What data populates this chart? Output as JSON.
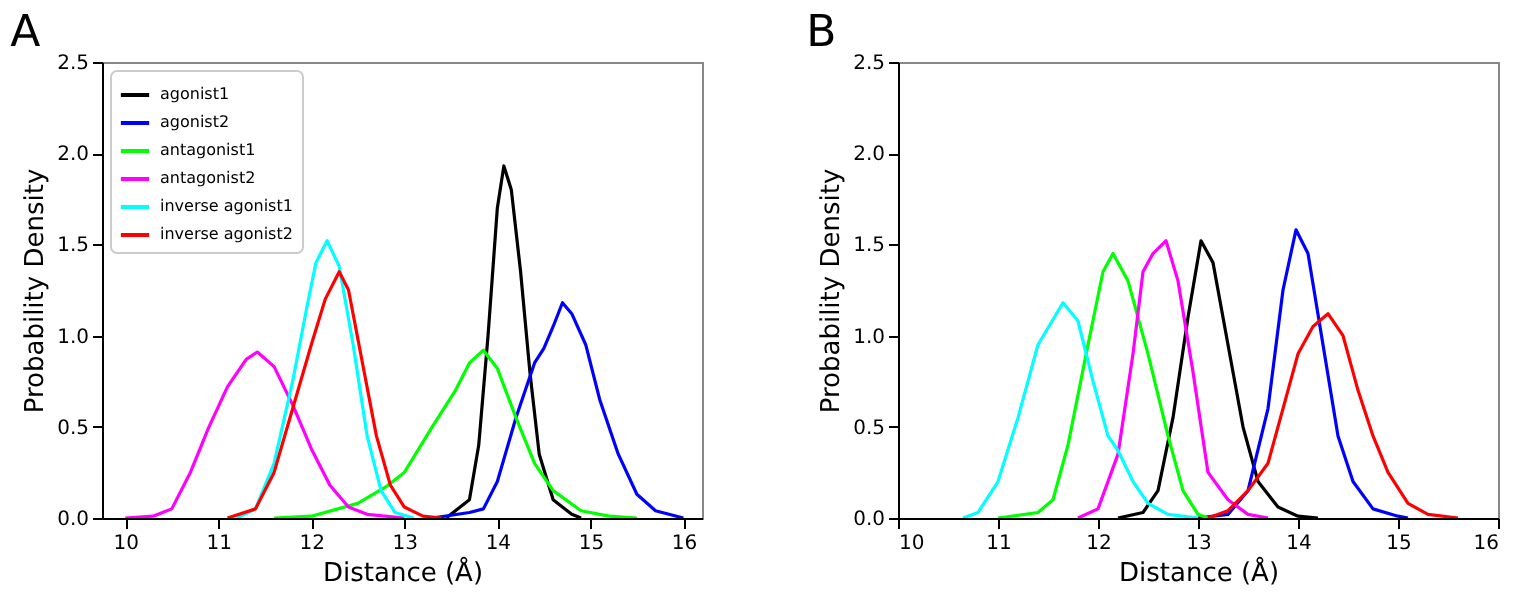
{
  "chart_data": [
    {
      "type": "line",
      "title": "A",
      "xlabel": "Distance (Å)",
      "ylabel": "Probability Density",
      "xlim": [
        9.75,
        16.2
      ],
      "ylim": [
        0,
        2.5
      ],
      "xticks": [
        10,
        11,
        12,
        13,
        14,
        15,
        16
      ],
      "yticks": [
        {
          "value": 0,
          "label": "0.0"
        },
        {
          "value": 0.5,
          "label": "0.5"
        },
        {
          "value": 1,
          "label": "1.0"
        },
        {
          "value": 1.5,
          "label": "1.5"
        },
        {
          "value": 2,
          "label": "2.0"
        },
        {
          "value": 2.5,
          "label": "2.5"
        }
      ],
      "grid": false,
      "legend": "top left",
      "series": [
        {
          "name": "agonist1",
          "color": "#000000",
          "x": [
            13.45,
            13.7,
            13.8,
            13.9,
            14.0,
            14.07,
            14.15,
            14.25,
            14.35,
            14.45,
            14.6,
            14.8,
            14.9
          ],
          "values": [
            0,
            0.1,
            0.4,
            1.0,
            1.7,
            1.93,
            1.8,
            1.35,
            0.8,
            0.35,
            0.1,
            0.02,
            0
          ]
        },
        {
          "name": "agonist2",
          "color": "#0000ff",
          "x": [
            13.3,
            13.7,
            13.85,
            14.0,
            14.2,
            14.4,
            14.5,
            14.6,
            14.7,
            14.8,
            14.95,
            15.1,
            15.3,
            15.5,
            15.7,
            16.0
          ],
          "values": [
            0,
            0.03,
            0.05,
            0.2,
            0.55,
            0.85,
            0.93,
            1.05,
            1.18,
            1.12,
            0.95,
            0.65,
            0.35,
            0.13,
            0.04,
            0
          ]
        },
        {
          "name": "antagonist1",
          "color": "#00ff00",
          "x": [
            11.6,
            12.0,
            12.5,
            12.8,
            13.0,
            13.3,
            13.55,
            13.7,
            13.85,
            14.0,
            14.2,
            14.4,
            14.6,
            14.9,
            15.2,
            15.5
          ],
          "values": [
            0,
            0.01,
            0.08,
            0.17,
            0.25,
            0.5,
            0.7,
            0.85,
            0.92,
            0.82,
            0.55,
            0.3,
            0.15,
            0.04,
            0.01,
            0
          ]
        },
        {
          "name": "antagonist2",
          "color": "#ff00ff",
          "x": [
            10.0,
            10.3,
            10.5,
            10.7,
            10.9,
            11.1,
            11.3,
            11.42,
            11.6,
            11.8,
            12.0,
            12.2,
            12.4,
            12.6,
            13.0
          ],
          "values": [
            0,
            0.01,
            0.05,
            0.25,
            0.5,
            0.72,
            0.87,
            0.91,
            0.83,
            0.62,
            0.38,
            0.18,
            0.06,
            0.02,
            0
          ]
        },
        {
          "name": "inverse agonist1",
          "color": "#00ffff",
          "x": [
            11.2,
            11.4,
            11.6,
            11.8,
            11.95,
            12.05,
            12.17,
            12.3,
            12.45,
            12.6,
            12.75,
            12.9,
            13.1
          ],
          "values": [
            0,
            0.05,
            0.3,
            0.75,
            1.15,
            1.4,
            1.52,
            1.38,
            0.95,
            0.45,
            0.15,
            0.03,
            0
          ]
        },
        {
          "name": "inverse agonist2",
          "color": "#ff0000",
          "x": [
            11.1,
            11.4,
            11.6,
            11.8,
            12.0,
            12.15,
            12.3,
            12.4,
            12.55,
            12.7,
            12.85,
            13.0,
            13.2,
            13.4
          ],
          "values": [
            0,
            0.05,
            0.25,
            0.6,
            0.95,
            1.2,
            1.35,
            1.25,
            0.85,
            0.45,
            0.18,
            0.06,
            0.01,
            0
          ]
        }
      ]
    },
    {
      "type": "line",
      "title": "B",
      "xlabel": "Distance (Å)",
      "ylabel": "Probability Density",
      "xlim": [
        10,
        16
      ],
      "ylim": [
        0,
        2.5
      ],
      "xticks": [
        10,
        11,
        12,
        13,
        14,
        15,
        16
      ],
      "yticks": [
        {
          "value": 0,
          "label": "0.0"
        },
        {
          "value": 0.5,
          "label": "0.5"
        },
        {
          "value": 1,
          "label": "1.0"
        },
        {
          "value": 1.5,
          "label": "1.5"
        },
        {
          "value": 2,
          "label": "2.0"
        },
        {
          "value": 2.5,
          "label": "2.5"
        }
      ],
      "grid": false,
      "series": [
        {
          "color": "#000000",
          "x": [
            12.2,
            12.45,
            12.6,
            12.75,
            12.9,
            13.03,
            13.15,
            13.3,
            13.45,
            13.6,
            13.8,
            14.0,
            14.2
          ],
          "values": [
            0,
            0.03,
            0.15,
            0.55,
            1.1,
            1.52,
            1.4,
            0.95,
            0.5,
            0.2,
            0.06,
            0.01,
            0
          ]
        },
        {
          "color": "#0000ff",
          "x": [
            13.0,
            13.3,
            13.5,
            13.7,
            13.85,
            13.98,
            14.1,
            14.25,
            14.4,
            14.55,
            14.75,
            15.0,
            15.1
          ],
          "values": [
            0,
            0.02,
            0.15,
            0.6,
            1.25,
            1.58,
            1.45,
            0.95,
            0.45,
            0.2,
            0.05,
            0.01,
            0
          ]
        },
        {
          "color": "#00ff00",
          "x": [
            11.0,
            11.4,
            11.55,
            11.7,
            11.9,
            12.05,
            12.15,
            12.3,
            12.5,
            12.7,
            12.85,
            13.0,
            13.1
          ],
          "values": [
            0,
            0.03,
            0.1,
            0.4,
            0.95,
            1.35,
            1.45,
            1.3,
            0.9,
            0.45,
            0.15,
            0.02,
            0
          ]
        },
        {
          "color": "#ff00ff",
          "x": [
            11.8,
            12.0,
            12.2,
            12.35,
            12.45,
            12.55,
            12.68,
            12.8,
            12.95,
            13.1,
            13.3,
            13.5,
            13.7
          ],
          "values": [
            0,
            0.05,
            0.35,
            0.9,
            1.35,
            1.45,
            1.52,
            1.3,
            0.8,
            0.25,
            0.1,
            0.02,
            0
          ]
        },
        {
          "color": "#00ffff",
          "x": [
            10.65,
            10.8,
            11.0,
            11.2,
            11.4,
            11.65,
            11.8,
            11.95,
            12.1,
            12.2,
            12.35,
            12.5,
            12.7,
            13.0
          ],
          "values": [
            0,
            0.03,
            0.2,
            0.55,
            0.95,
            1.18,
            1.08,
            0.75,
            0.45,
            0.37,
            0.2,
            0.08,
            0.02,
            0
          ]
        },
        {
          "color": "#ff0000",
          "x": [
            13.1,
            13.3,
            13.5,
            13.7,
            13.85,
            14.0,
            14.15,
            14.3,
            14.45,
            14.6,
            14.75,
            14.9,
            15.1,
            15.3,
            15.6
          ],
          "values": [
            0,
            0.04,
            0.15,
            0.3,
            0.6,
            0.9,
            1.05,
            1.12,
            1.0,
            0.7,
            0.45,
            0.25,
            0.08,
            0.02,
            0
          ]
        }
      ]
    }
  ]
}
